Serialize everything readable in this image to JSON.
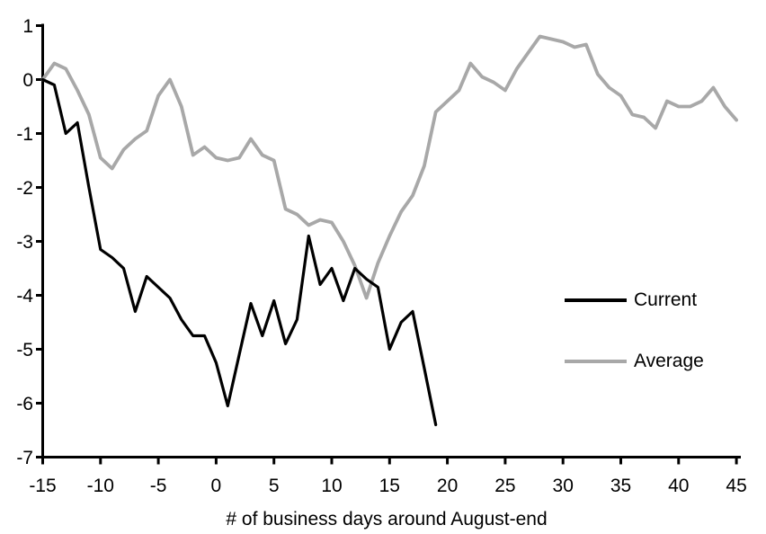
{
  "chart_data": {
    "type": "line",
    "title": "",
    "xlabel": "# of business days around August-end",
    "ylabel": "",
    "xlim": [
      -15,
      45
    ],
    "ylim": [
      -7,
      1
    ],
    "x_ticks": [
      -15,
      -10,
      -5,
      0,
      5,
      10,
      15,
      20,
      25,
      30,
      35,
      40,
      45
    ],
    "y_ticks": [
      1,
      0,
      -1,
      -2,
      -3,
      -4,
      -5,
      -6,
      -7
    ],
    "grid": false,
    "legend_position": "middle-right",
    "background_color": "#ffffff",
    "axis_color": "#000000",
    "series": [
      {
        "name": "Current",
        "color": "#000000",
        "x_start": -15,
        "x_step": 1,
        "values": [
          0.0,
          -0.1,
          -1.0,
          -0.8,
          -2.0,
          -3.15,
          -3.3,
          -3.5,
          -4.3,
          -3.65,
          -3.85,
          -4.05,
          -4.45,
          -4.75,
          -4.75,
          -5.25,
          -6.05,
          -5.1,
          -4.15,
          -4.75,
          -4.1,
          -4.9,
          -4.45,
          -2.9,
          -3.8,
          -3.5,
          -4.1,
          -3.5,
          -3.7,
          -3.85,
          -5.0,
          -4.5,
          -4.3,
          -5.35,
          -6.4
        ]
      },
      {
        "name": "Average",
        "color": "#a8a8a8",
        "x_start": -15,
        "x_step": 1,
        "values": [
          0.0,
          0.3,
          0.2,
          -0.2,
          -0.65,
          -1.45,
          -1.65,
          -1.3,
          -1.1,
          -0.95,
          -0.3,
          0.0,
          -0.5,
          -1.4,
          -1.25,
          -1.45,
          -1.5,
          -1.45,
          -1.1,
          -1.4,
          -1.5,
          -2.4,
          -2.5,
          -2.7,
          -2.6,
          -2.65,
          -3.0,
          -3.45,
          -4.05,
          -3.4,
          -2.9,
          -2.45,
          -2.15,
          -1.6,
          -0.6,
          -0.4,
          -0.2,
          0.3,
          0.05,
          -0.05,
          -0.2,
          0.2,
          0.5,
          0.8,
          0.75,
          0.7,
          0.6,
          0.65,
          0.1,
          -0.15,
          -0.3,
          -0.65,
          -0.7,
          -0.9,
          -0.4,
          -0.5,
          -0.5,
          -0.4,
          -0.15,
          -0.5,
          -0.75
        ]
      }
    ]
  }
}
